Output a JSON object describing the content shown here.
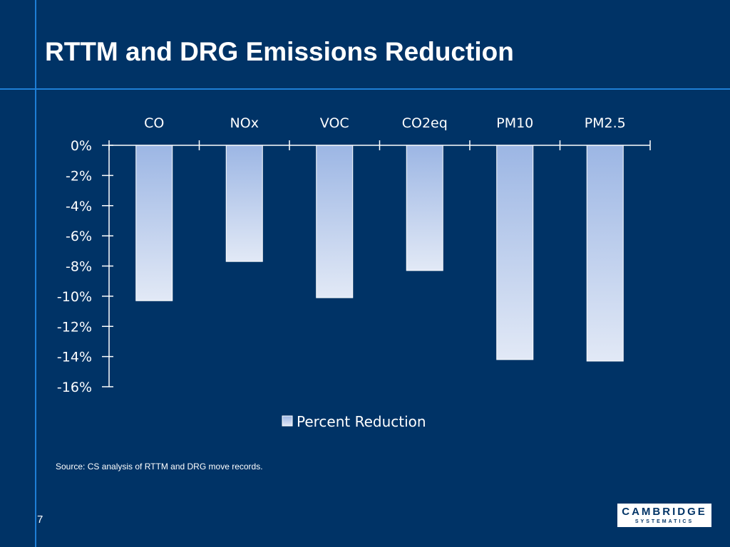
{
  "slide": {
    "title": "RTTM and DRG Emissions Reduction",
    "source": "Source: CS analysis of RTTM and DRG move records.",
    "page_number": "7",
    "logo_line1": "CAMBRIDGE",
    "logo_line2": "SYSTEMATICS"
  },
  "chart_data": {
    "type": "bar",
    "title": "",
    "xlabel": "",
    "ylabel": "",
    "categories": [
      "CO",
      "NOx",
      "VOC",
      "CO2eq",
      "PM10",
      "PM2.5"
    ],
    "series": [
      {
        "name": "Percent Reduction",
        "values": [
          -10.3,
          -7.7,
          -10.1,
          -8.3,
          -14.2,
          -14.3
        ]
      }
    ],
    "ylim": [
      -16,
      0
    ],
    "yticks": [
      0,
      -2,
      -4,
      -6,
      -8,
      -10,
      -12,
      -14,
      -16
    ],
    "ytick_labels": [
      "0%",
      "-2%",
      "-4%",
      "-6%",
      "-8%",
      "-10%",
      "-12%",
      "-14%",
      "-16%"
    ],
    "category_labels_position": "top",
    "legend": "bottom-center",
    "grid": false,
    "colors": {
      "bar_top": "#9cb6e4",
      "bar_bottom": "#e2e9f6",
      "bar_stroke": "#ffffff",
      "axis": "#ffffff"
    }
  }
}
